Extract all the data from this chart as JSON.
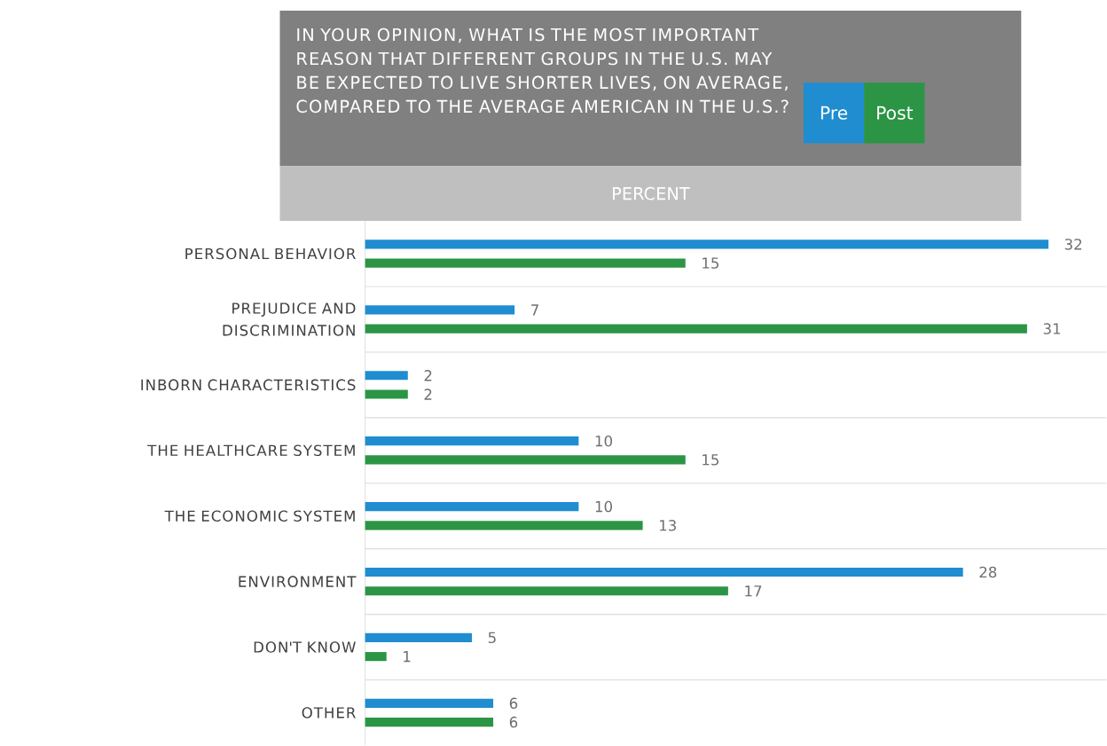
{
  "chart_data": {
    "type": "bar",
    "orientation": "horizontal",
    "title": "IN YOUR OPINION, WHAT IS THE MOST IMPORTANT REASON THAT DIFFERENT GROUPS IN THE U.S. MAY BE EXPECTED TO LIVE SHORTER LIVES, ON AVERAGE, COMPARED TO THE AVERAGE AMERICAN IN THE U.S.?",
    "annotations": [
      "PERCENT"
    ],
    "categories": [
      "PERSONAL BEHAVIOR",
      "PREJUDICE AND DISCRIMINATION",
      "INBORN CHARACTERISTICS",
      "THE HEALTHCARE SYSTEM",
      "THE ECONOMIC SYSTEM",
      "ENVIRONMENT",
      "DON'T KNOW",
      "OTHER"
    ],
    "series": [
      {
        "name": "Pre",
        "color": "#1f8dd0",
        "values": [
          32,
          7,
          2,
          10,
          10,
          28,
          5,
          6
        ]
      },
      {
        "name": "Post",
        "color": "#2b9545",
        "values": [
          15,
          31,
          2,
          15,
          13,
          17,
          1,
          6
        ]
      }
    ],
    "data_labels": true,
    "legend": "top right"
  }
}
